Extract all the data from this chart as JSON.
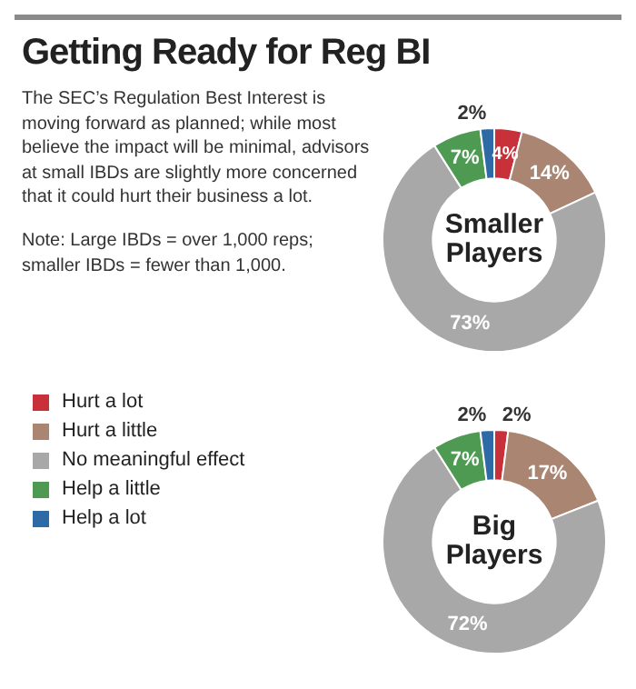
{
  "chart_data": {
    "type": "donut",
    "title": "Getting Ready for Reg BI",
    "subtitle": "The SEC’s Regulation Best Interest is moving forward as planned; while most believe the impact will be minimal, advisors at small IBDs are slightly more concerned that it could hurt their business a lot.",
    "annotations": [
      "Note: Large IBDs = over 1,000 reps; smaller IBDs = fewer than 1,000."
    ],
    "categories": [
      "Hurt a lot",
      "Hurt a little",
      "No meaningful effect",
      "Help a little",
      "Help a lot"
    ],
    "colors": [
      "#c8313a",
      "#a98572",
      "#a8a8a8",
      "#4f9a52",
      "#2e6aa6"
    ],
    "legend": "left",
    "series": [
      {
        "name": "Smaller Players",
        "values": [
          4,
          14,
          73,
          7,
          2
        ],
        "value_labels": [
          "4%",
          "14%",
          "73%",
          "7%",
          "2%"
        ]
      },
      {
        "name": "Big Players",
        "values": [
          2,
          17,
          72,
          7,
          2
        ],
        "value_labels": [
          "2%",
          "17%",
          "72%",
          "7%",
          "2%"
        ]
      }
    ]
  }
}
